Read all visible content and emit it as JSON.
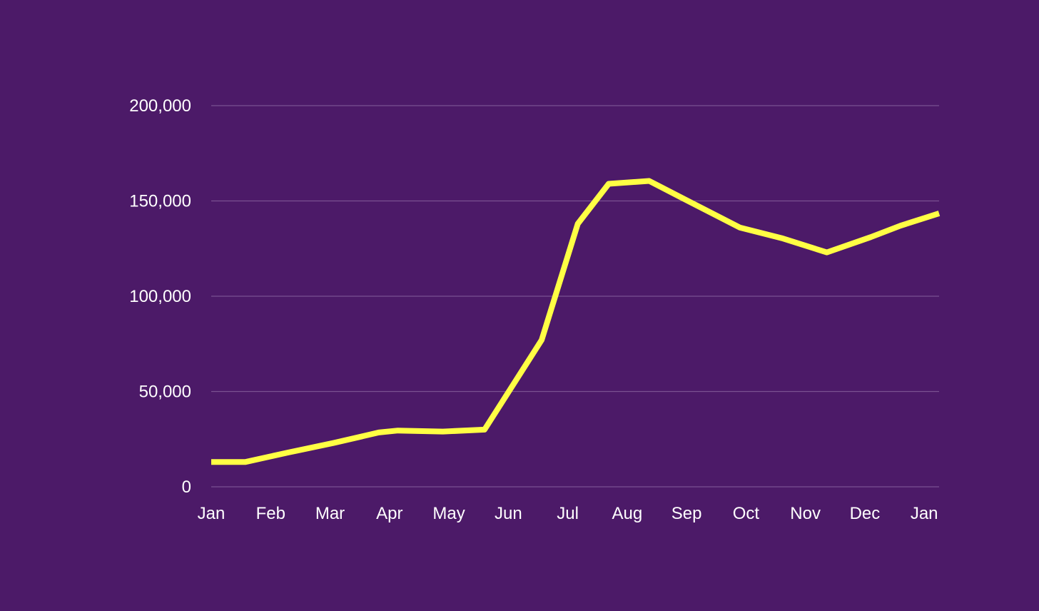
{
  "chart_data": {
    "type": "line",
    "title": "",
    "xlabel": "",
    "ylabel": "",
    "ylim": [
      0,
      200000
    ],
    "yticks": [
      {
        "value": 0,
        "label": "0"
      },
      {
        "value": 50000,
        "label": "50,000"
      },
      {
        "value": 100000,
        "label": "100,000"
      },
      {
        "value": 150000,
        "label": "150,000"
      },
      {
        "value": 200000,
        "label": "200,000"
      }
    ],
    "month_labels": [
      "Jan",
      "Feb",
      "Mar",
      "Apr",
      "May",
      "Jun",
      "Jul",
      "Aug",
      "Sep",
      "Oct",
      "Nov",
      "Dec",
      "Jan"
    ],
    "xlim": [
      0,
      12.25
    ],
    "grid": true,
    "legend": "none",
    "series": [
      {
        "color": "#ffff44",
        "points": [
          [
            0,
            13000
          ],
          [
            0.57,
            13000
          ],
          [
            1.3,
            18000
          ],
          [
            2.06,
            23000
          ],
          [
            2.82,
            28500
          ],
          [
            3.14,
            29500
          ],
          [
            3.9,
            29000
          ],
          [
            4.6,
            30000
          ],
          [
            5.56,
            77000
          ],
          [
            6.17,
            138000
          ],
          [
            6.69,
            159000
          ],
          [
            7.37,
            160500
          ],
          [
            7.96,
            151000
          ],
          [
            8.9,
            136000
          ],
          [
            9.6,
            130500
          ],
          [
            10.36,
            123000
          ],
          [
            11.1,
            131000
          ],
          [
            11.6,
            137000
          ],
          [
            12.25,
            143500
          ]
        ]
      }
    ],
    "colors": {
      "background": "#4c1a68",
      "grid": "#7a5291",
      "text": "#ffffff"
    }
  }
}
